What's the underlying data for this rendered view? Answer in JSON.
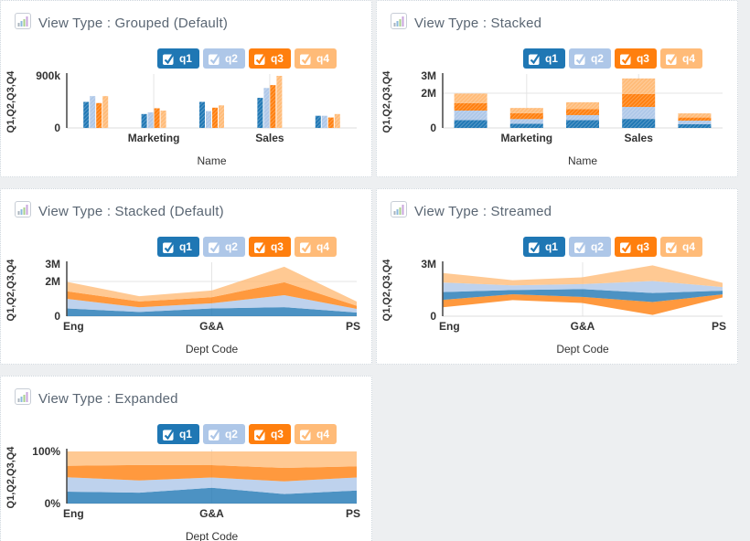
{
  "page": {
    "background": "#edeff1",
    "card_background": "#ffffff",
    "card_border": "#ccd4db",
    "title_color": "#5a6673"
  },
  "colors": {
    "q1": "#1f77b4",
    "q2": "#aec7e8",
    "q3": "#ff7f0e",
    "q4": "#ffbb78"
  },
  "legend": {
    "items": [
      {
        "label": "q1",
        "series": "q1",
        "checked": true
      },
      {
        "label": "q2",
        "series": "q2",
        "checked": true
      },
      {
        "label": "q3",
        "series": "q3",
        "checked": true
      },
      {
        "label": "q4",
        "series": "q4",
        "checked": true
      }
    ]
  },
  "chart_data": [
    {
      "type": "grouped-bar",
      "title": "View Type : Grouped (Default)",
      "xlabel": "Name",
      "ylabel": "Q1,Q2,Q3,Q4",
      "ymax": 900000,
      "yticks": [
        {
          "value": 900000,
          "label": "900k"
        },
        {
          "value": 0,
          "label": "0"
        }
      ],
      "categories": [
        "",
        "Marketing",
        "",
        "Sales",
        ""
      ],
      "series": [
        {
          "name": "q1",
          "values": [
            450000,
            240000,
            450000,
            520000,
            210000
          ]
        },
        {
          "name": "q2",
          "values": [
            550000,
            270000,
            290000,
            690000,
            210000
          ]
        },
        {
          "name": "q3",
          "values": [
            430000,
            340000,
            350000,
            740000,
            180000
          ]
        },
        {
          "name": "q4",
          "values": [
            550000,
            300000,
            390000,
            900000,
            240000
          ]
        }
      ]
    },
    {
      "type": "stacked-bar",
      "title": "View Type : Stacked",
      "xlabel": "Name",
      "ylabel": "Q1,Q2,Q3,Q4",
      "ymax": 3000000,
      "yticks": [
        {
          "value": 3000000,
          "label": "3M"
        },
        {
          "value": 2000000,
          "label": "2M",
          "grid": true
        },
        {
          "value": 0,
          "label": "0"
        }
      ],
      "categories": [
        "",
        "Marketing",
        "",
        "Sales",
        ""
      ],
      "series": [
        {
          "name": "q1",
          "values": [
            450000,
            240000,
            450000,
            520000,
            210000
          ]
        },
        {
          "name": "q2",
          "values": [
            550000,
            270000,
            290000,
            690000,
            210000
          ]
        },
        {
          "name": "q3",
          "values": [
            430000,
            340000,
            350000,
            740000,
            180000
          ]
        },
        {
          "name": "q4",
          "values": [
            550000,
            300000,
            390000,
            900000,
            240000
          ]
        }
      ]
    },
    {
      "type": "stacked-area",
      "title": "View Type : Stacked (Default)",
      "xlabel": "Dept Code",
      "ylabel": "Q1,Q2,Q3,Q4",
      "ymax": 3000000,
      "yticks": [
        {
          "value": 3000000,
          "label": "3M"
        },
        {
          "value": 2000000,
          "label": "2M",
          "grid": true
        },
        {
          "value": 0,
          "label": "0"
        }
      ],
      "categories": [
        "Eng",
        "",
        "G&A",
        "",
        "PS"
      ],
      "series": [
        {
          "name": "q1",
          "values": [
            450000,
            240000,
            450000,
            520000,
            210000
          ]
        },
        {
          "name": "q2",
          "values": [
            550000,
            270000,
            290000,
            690000,
            210000
          ]
        },
        {
          "name": "q3",
          "values": [
            430000,
            340000,
            350000,
            740000,
            180000
          ]
        },
        {
          "name": "q4",
          "values": [
            550000,
            300000,
            390000,
            900000,
            240000
          ]
        }
      ]
    },
    {
      "type": "stream-area",
      "title": "View Type : Streamed",
      "xlabel": "Dept Code",
      "ylabel": "Q1,Q2,Q3,Q4",
      "ymax": 3000000,
      "yticks": [
        {
          "value": 3000000,
          "label": "3M"
        },
        {
          "value": 0,
          "label": "0"
        }
      ],
      "categories": [
        "Eng",
        "",
        "G&A",
        "",
        "PS"
      ],
      "layer_order": [
        "q3",
        "q1",
        "q2",
        "q4"
      ],
      "series": [
        {
          "name": "q1",
          "values": [
            450000,
            240000,
            450000,
            520000,
            210000
          ]
        },
        {
          "name": "q2",
          "values": [
            550000,
            270000,
            290000,
            690000,
            210000
          ]
        },
        {
          "name": "q3",
          "values": [
            430000,
            340000,
            350000,
            740000,
            180000
          ]
        },
        {
          "name": "q4",
          "values": [
            550000,
            300000,
            390000,
            900000,
            240000
          ]
        }
      ]
    },
    {
      "type": "expanded-area",
      "title": "View Type : Expanded",
      "xlabel": "Dept Code",
      "ylabel": "Q1,Q2,Q3,Q4",
      "ymax": 1,
      "yticks": [
        {
          "value": 1,
          "label": "100%"
        },
        {
          "value": 0,
          "label": "0%"
        }
      ],
      "categories": [
        "Eng",
        "",
        "G&A",
        "",
        "PS"
      ],
      "series": [
        {
          "name": "q1",
          "values": [
            450000,
            240000,
            450000,
            520000,
            210000
          ]
        },
        {
          "name": "q2",
          "values": [
            550000,
            270000,
            290000,
            690000,
            210000
          ]
        },
        {
          "name": "q3",
          "values": [
            430000,
            340000,
            350000,
            740000,
            180000
          ]
        },
        {
          "name": "q4",
          "values": [
            550000,
            300000,
            390000,
            900000,
            240000
          ]
        }
      ]
    }
  ]
}
